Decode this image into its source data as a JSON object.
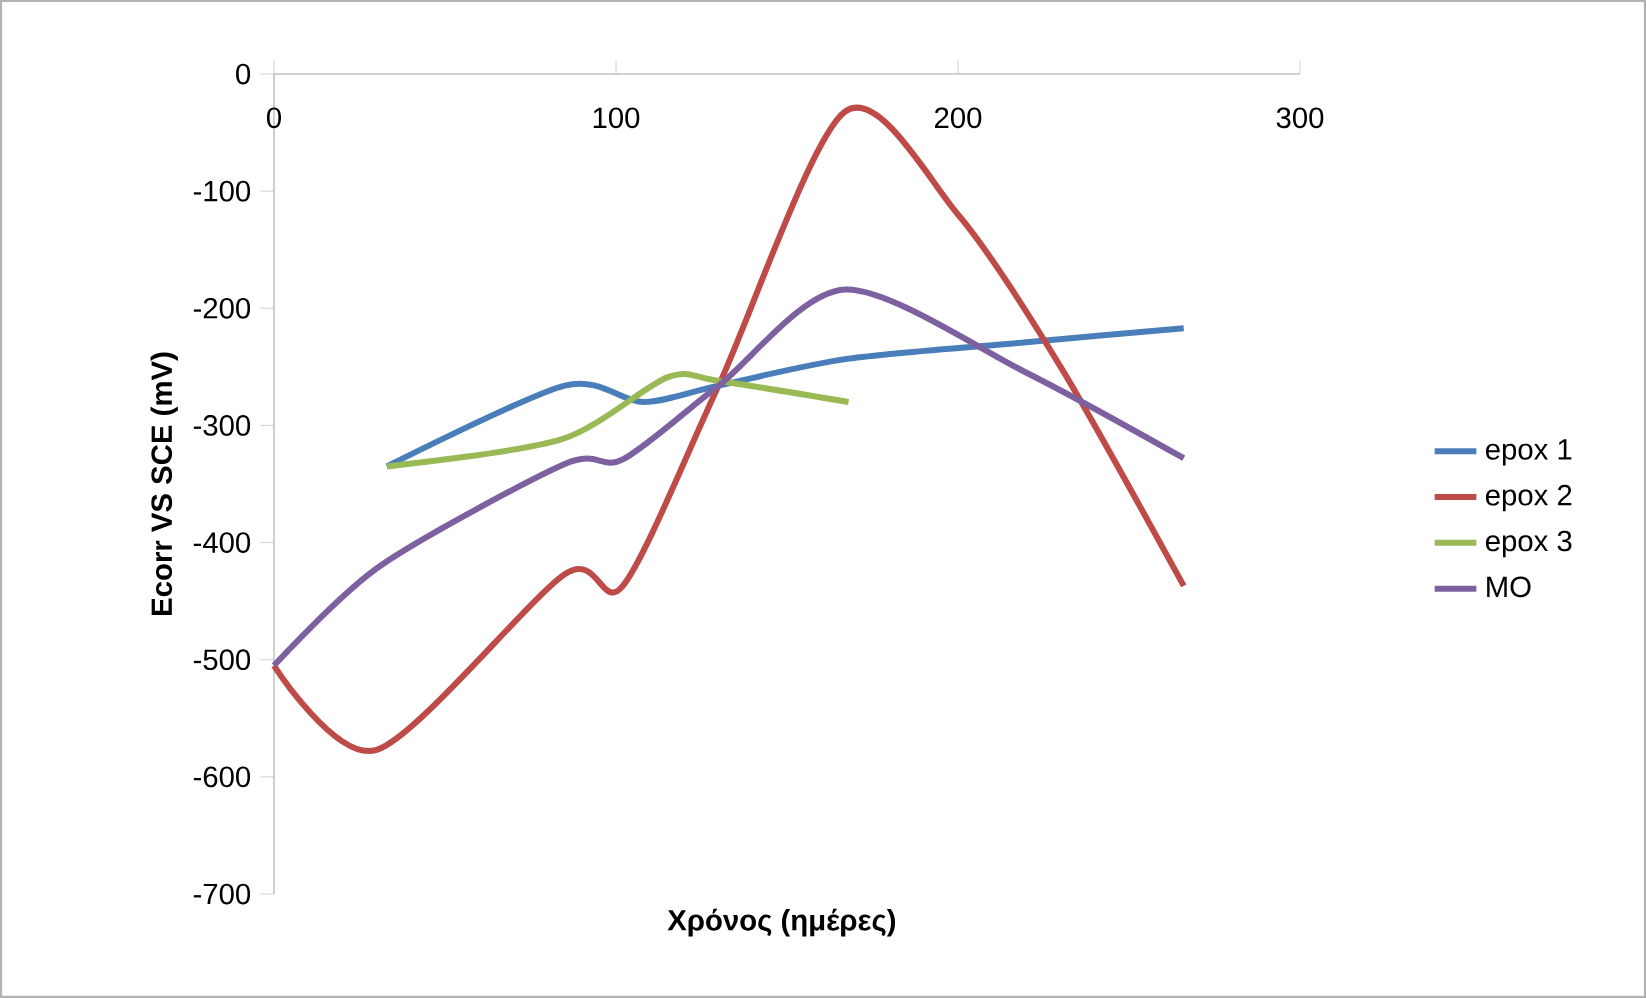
{
  "chart_data": {
    "type": "line",
    "xlabel": "Χρόνος (ημέρες)",
    "ylabel": "Ecorr VS SCE (mV)",
    "xlim": [
      0,
      300
    ],
    "ylim": [
      -700,
      0
    ],
    "xticks": [
      0,
      100,
      200,
      300
    ],
    "yticks": [
      -700,
      -600,
      -500,
      -400,
      -300,
      -200,
      -100,
      0
    ],
    "legend": "right",
    "marker": "none",
    "line_style": "solid",
    "series": [
      {
        "name": "epox 1",
        "color": "#4a7ebb",
        "x": [
          33,
          85,
          108,
          130,
          168,
          220,
          266
        ],
        "values": [
          -335,
          -266,
          -280,
          -266,
          -243,
          -229,
          -217
        ]
      },
      {
        "name": "epox 2",
        "color": "#be4b48",
        "x": [
          0,
          30,
          85,
          102,
          130,
          167,
          200,
          230,
          266
        ],
        "values": [
          -505,
          -577,
          -427,
          -437,
          -266,
          -32,
          -120,
          -250,
          -437
        ]
      },
      {
        "name": "epox 3",
        "color": "#98b954",
        "x": [
          33,
          84,
          115,
          130,
          168
        ],
        "values": [
          -335,
          -312,
          -259,
          -262,
          -280
        ]
      },
      {
        "name": "MO",
        "color": "#7d60a0",
        "x": [
          0,
          31,
          85,
          102,
          130,
          167,
          220,
          266
        ],
        "values": [
          -505,
          -420,
          -333,
          -329,
          -266,
          -184,
          -255,
          -328
        ]
      }
    ]
  }
}
